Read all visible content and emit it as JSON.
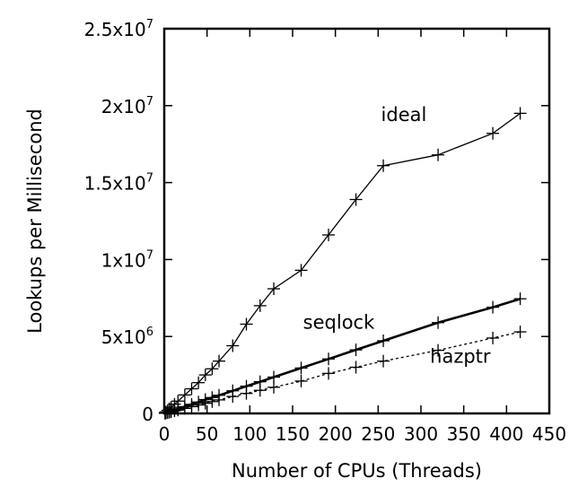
{
  "chart_data": {
    "type": "line",
    "title": "",
    "xlabel": "Number of CPUs (Threads)",
    "ylabel": "Lookups per Millisecond",
    "xlim": [
      0,
      450
    ],
    "ylim": [
      0,
      25000000
    ],
    "x_ticks": [
      {
        "value": 0,
        "label": "0"
      },
      {
        "value": 50,
        "label": "50"
      },
      {
        "value": 100,
        "label": "100"
      },
      {
        "value": 150,
        "label": "150"
      },
      {
        "value": 200,
        "label": "200"
      },
      {
        "value": 250,
        "label": "250"
      },
      {
        "value": 300,
        "label": "300"
      },
      {
        "value": 350,
        "label": "350"
      },
      {
        "value": 400,
        "label": "400"
      },
      {
        "value": 450,
        "label": "450"
      }
    ],
    "y_ticks": [
      {
        "value": 0,
        "mantissa": "0",
        "exponent": ""
      },
      {
        "value": 5000000,
        "mantissa": "5x10",
        "exponent": "6"
      },
      {
        "value": 10000000,
        "mantissa": "1x10",
        "exponent": "7"
      },
      {
        "value": 15000000,
        "mantissa": "1.5x10",
        "exponent": "7"
      },
      {
        "value": 20000000,
        "mantissa": "2x10",
        "exponent": "7"
      },
      {
        "value": 25000000,
        "mantissa": "2.5x10",
        "exponent": "7"
      }
    ],
    "grid": false,
    "legend": "inline labels",
    "series": [
      {
        "name": "ideal",
        "color": "#000000",
        "line_style": "solid",
        "x": [
          1,
          2,
          4,
          6,
          8,
          12,
          16,
          24,
          32,
          40,
          48,
          56,
          64,
          80,
          96,
          112,
          128,
          160,
          192,
          224,
          256,
          320,
          384,
          416
        ],
        "y": [
          50000,
          100000,
          200000,
          300000,
          400000,
          600000,
          800000,
          1200000,
          1600000,
          2000000,
          2500000,
          2900000,
          3400000,
          4400000,
          5800000,
          7000000,
          8100000,
          9300000,
          11600000,
          13900000,
          16100000,
          16800000,
          18200000,
          19500000
        ]
      },
      {
        "name": "seqlock",
        "color": "#000000",
        "line_style": "solid-thick",
        "x": [
          1,
          2,
          4,
          6,
          8,
          12,
          16,
          24,
          32,
          40,
          48,
          56,
          64,
          80,
          96,
          112,
          128,
          160,
          192,
          224,
          256,
          320,
          384,
          416
        ],
        "y": [
          20000,
          40000,
          70000,
          100000,
          140000,
          220000,
          290000,
          440000,
          590000,
          740000,
          900000,
          1030000,
          1180000,
          1470000,
          1770000,
          2060000,
          2360000,
          2950000,
          3540000,
          4130000,
          4720000,
          5900000,
          6900000,
          7450000
        ]
      },
      {
        "name": "hazptr",
        "color": "#000000",
        "line_style": "dotted",
        "x": [
          1,
          2,
          4,
          6,
          8,
          12,
          16,
          24,
          32,
          40,
          48,
          56,
          64,
          80,
          96,
          112,
          128,
          160,
          192,
          224,
          256,
          320,
          384,
          416
        ],
        "y": [
          15000,
          30000,
          55000,
          80000,
          110000,
          170000,
          220000,
          330000,
          440000,
          550000,
          660000,
          770000,
          880000,
          1100000,
          1300000,
          1500000,
          1700000,
          2100000,
          2600000,
          3000000,
          3400000,
          4100000,
          4900000,
          5300000
        ]
      }
    ],
    "annotations": [
      {
        "text": "ideal",
        "x": 280,
        "y": 19000000
      },
      {
        "text": "seqlock",
        "x": 204,
        "y": 5500000
      },
      {
        "text": "hazptr",
        "x": 346,
        "y": 3300000
      }
    ]
  }
}
